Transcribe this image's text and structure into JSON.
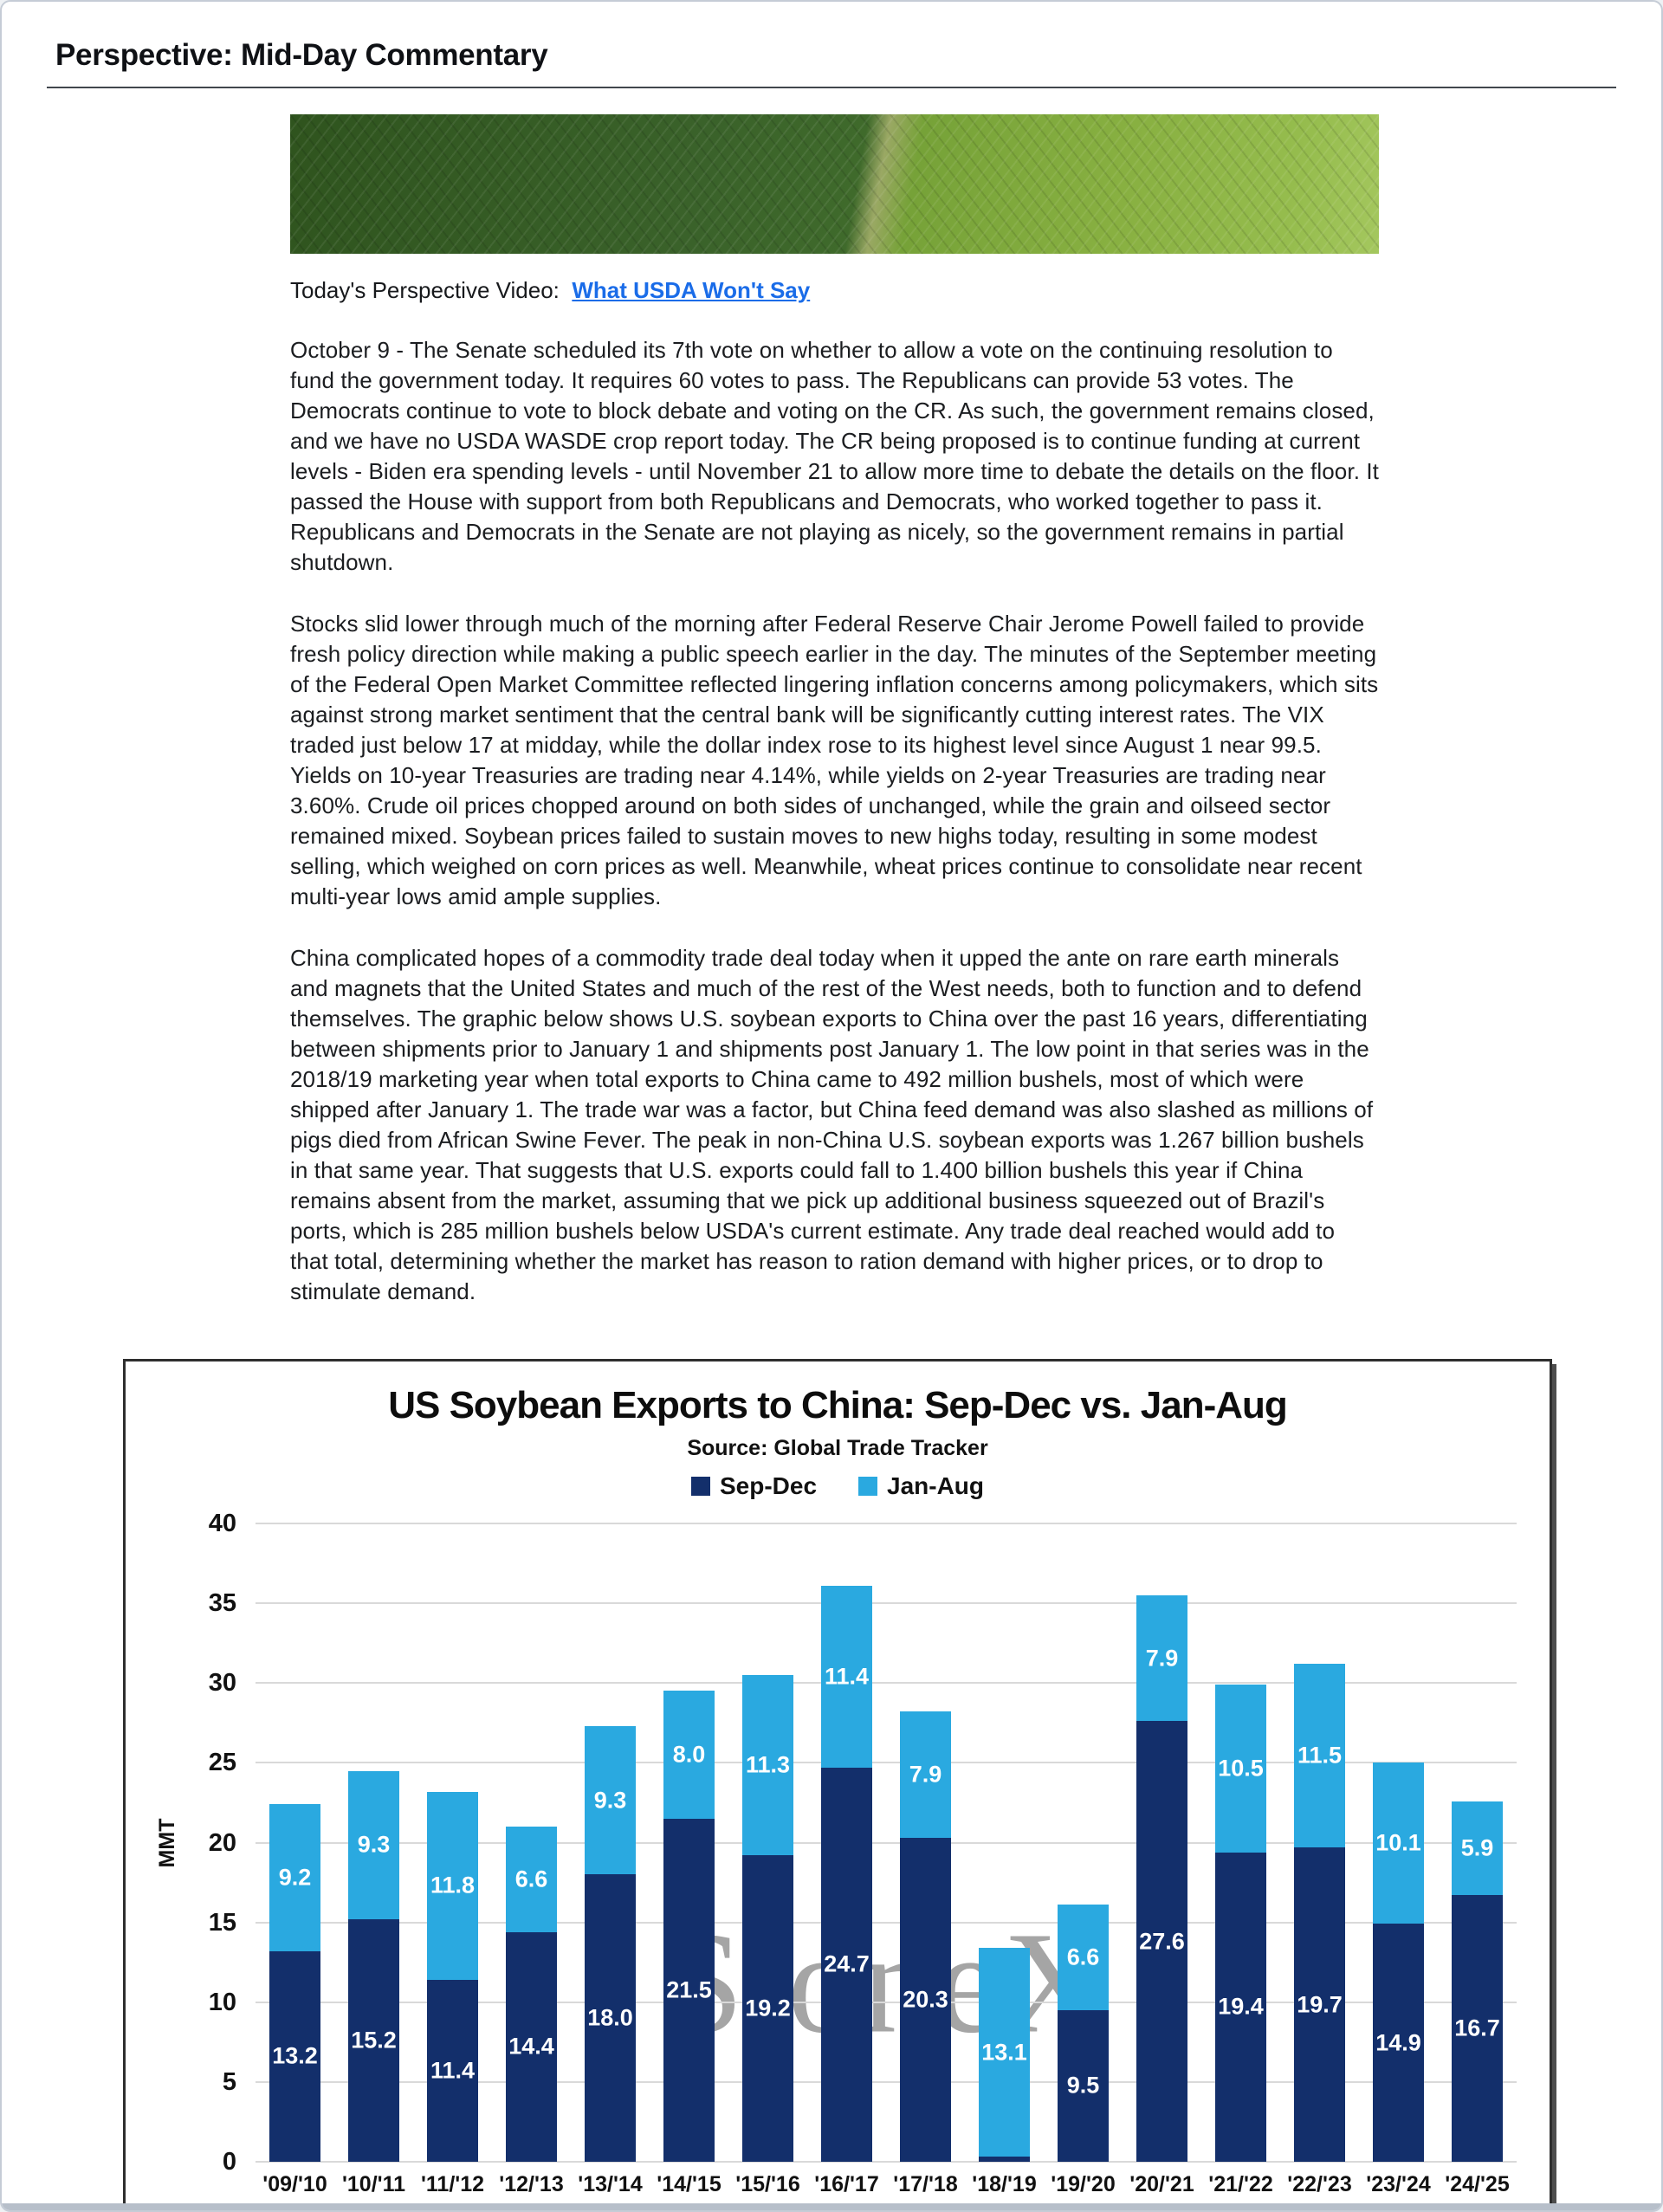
{
  "page": {
    "title": "Perspective: Mid-Day Commentary"
  },
  "video_line": {
    "label": "Today's Perspective Video:",
    "link_text": "What USDA Won't Say",
    "link_color": "#1a6ce8"
  },
  "paragraphs": [
    "October 9 - The Senate scheduled its 7th vote on whether to allow a vote on the continuing resolution to fund the government today. It requires 60 votes to pass. The Republicans can provide 53 votes. The Democrats continue to vote to block debate and voting on the CR. As such, the government remains closed, and we have no USDA WASDE crop report today. The CR being proposed is to continue funding at current levels - Biden era spending levels - until November 21 to allow more time to debate the details on the floor. It passed the House with support from both Republicans and Democrats, who worked together to pass it. Republicans and Democrats in the Senate are not playing as nicely, so the government remains in partial shutdown.",
    "Stocks slid lower through much of the morning after Federal Reserve Chair Jerome Powell failed to provide fresh policy direction while making a public speech earlier in the day. The minutes of the September meeting of the Federal Open Market Committee reflected lingering inflation concerns among policymakers, which sits against strong market sentiment that the central bank will be significantly cutting interest rates. The VIX traded just below 17 at midday, while the dollar index rose to its highest level since August 1 near 99.5. Yields on 10-year Treasuries are trading near 4.14%, while yields on 2-year Treasuries are trading near 3.60%. Crude oil prices chopped around on both sides of unchanged, while the grain and oilseed sector remained mixed. Soybean prices failed to sustain moves to new highs today, resulting in some modest selling, which weighed on corn prices as well. Meanwhile, wheat prices continue to consolidate near recent multi-year lows amid ample supplies.",
    "China complicated hopes of a commodity trade deal today when it upped the ante on rare earth minerals and magnets that the United States and much of the rest of the West needs, both to function and to defend themselves. The graphic below shows U.S. soybean exports to China over the past 16 years, differentiating between shipments prior to January 1 and shipments post January 1. The low point in that series was in the 2018/19 marketing year when total exports to China came to 492 million bushels, most of which were shipped after January 1. The trade war was a factor, but China feed demand was also slashed as millions of pigs died from African Swine Fever. The peak in non-China U.S. soybean exports was 1.267 billion bushels in that same year. That suggests that U.S. exports could fall to 1.400 billion bushels this year if China remains absent from the market, assuming that we pick up additional business squeezed out of Brazil's ports, which is 285 million bushels below USDA's current estimate. Any trade deal reached would add to that total, determining whether the market has reason to ration demand with higher prices, or to drop to stimulate demand."
  ],
  "chart_data": {
    "type": "bar",
    "stacked": true,
    "title": "US Soybean Exports to China: Sep-Dec vs. Jan-Aug",
    "subtitle": "Source: Global Trade Tracker",
    "xlabel": "",
    "ylabel": "MMT",
    "ylim": [
      0,
      40
    ],
    "ytick_step": 5,
    "grid": true,
    "legend_position": "top",
    "watermark": "StoneX",
    "watermark_color": "#8f8f8f",
    "categories": [
      "'09/'10",
      "'10/'11",
      "'11/'12",
      "'12/'13",
      "'13/'14",
      "'14/'15",
      "'15/'16",
      "'16/'17",
      "'17/'18",
      "'18/'19",
      "'19/'20",
      "'20/'21",
      "'21/'22",
      "'22/'23",
      "'23/'24",
      "'24/'25"
    ],
    "series": [
      {
        "name": "Sep-Dec",
        "color": "#132F6B",
        "values": [
          13.2,
          15.2,
          11.4,
          14.4,
          18.0,
          21.5,
          19.2,
          24.7,
          20.3,
          0.3,
          9.5,
          27.6,
          19.4,
          19.7,
          14.9,
          16.7
        ]
      },
      {
        "name": "Jan-Aug",
        "color": "#2AA9E0",
        "values": [
          9.2,
          9.3,
          11.8,
          6.6,
          9.3,
          8.0,
          11.3,
          11.4,
          7.9,
          13.1,
          6.6,
          7.9,
          10.5,
          11.5,
          10.1,
          5.9
        ]
      }
    ]
  }
}
